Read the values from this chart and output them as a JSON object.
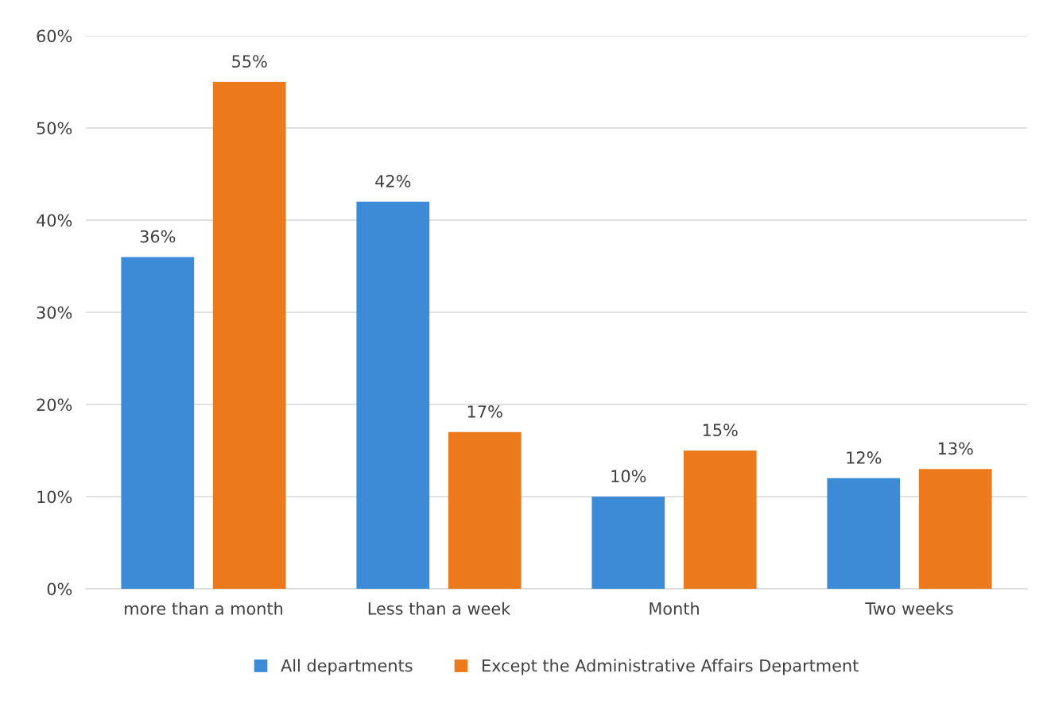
{
  "chart_data": {
    "type": "bar",
    "categories": [
      "more than a month",
      "Less than a week",
      "Month",
      "Two weeks"
    ],
    "series": [
      {
        "name": "All departments",
        "color": "#3d8ad6",
        "values": [
          36,
          42,
          10,
          12
        ],
        "value_labels": [
          "36%",
          "42%",
          "10%",
          "12%"
        ]
      },
      {
        "name": "Except the Administrative Affairs Department",
        "color": "#ec7a1c",
        "values": [
          55,
          17,
          15,
          13
        ],
        "value_labels": [
          "55%",
          "17%",
          "15%",
          "13%"
        ]
      }
    ],
    "ylim": [
      0,
      60
    ],
    "yticks": [
      {
        "value": 0,
        "label": "0%"
      },
      {
        "value": 10,
        "label": "10%"
      },
      {
        "value": 20,
        "label": "20%"
      },
      {
        "value": 30,
        "label": "30%"
      },
      {
        "value": 40,
        "label": "40%"
      },
      {
        "value": 50,
        "label": "50%"
      },
      {
        "value": 60,
        "label": "60%"
      }
    ],
    "grid": "y",
    "legend": "bottom"
  }
}
